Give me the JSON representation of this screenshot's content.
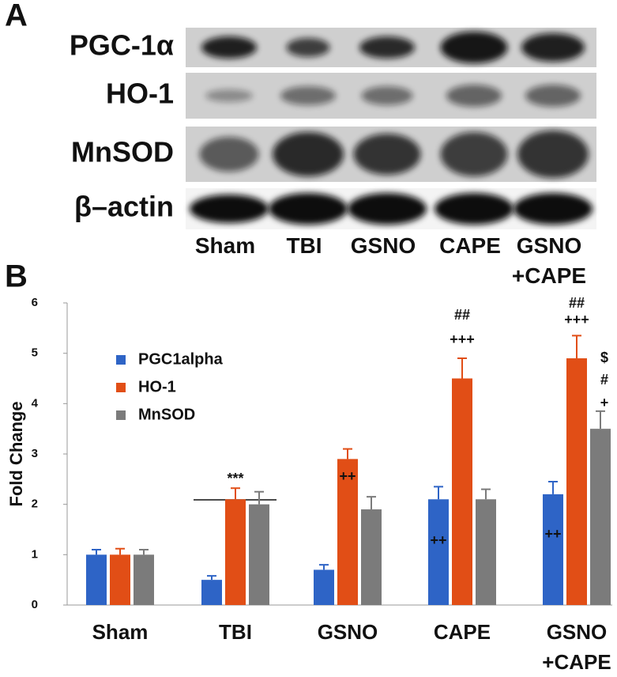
{
  "panel_a": {
    "letter": "A",
    "rows": [
      "PGC-1α",
      "HO-1",
      "MnSOD",
      "β–actin"
    ],
    "lanes": [
      "Sham",
      "TBI",
      "GSNO",
      "CAPE",
      "GSNO\n+CAPE"
    ]
  },
  "chart_data": {
    "type": "bar",
    "letter": "B",
    "ylabel": "Fold Change",
    "categories": [
      "Sham",
      "TBI",
      "GSNO",
      "CAPE",
      "GSNO\n+CAPE"
    ],
    "series": [
      {
        "name": "PGC1alpha",
        "color": "#2e64c6",
        "values": [
          1,
          0.5,
          0.7,
          2.1,
          2.2
        ],
        "errors": [
          0.1,
          0.08,
          0.1,
          0.25,
          0.25
        ]
      },
      {
        "name": "HO-1",
        "color": "#e14e16",
        "values": [
          1,
          2.1,
          2.9,
          4.5,
          4.9
        ],
        "errors": [
          0.12,
          0.22,
          0.2,
          0.4,
          0.45
        ]
      },
      {
        "name": "MnSOD",
        "color": "#7b7b7b",
        "values": [
          1,
          2.0,
          1.9,
          2.1,
          3.5
        ],
        "errors": [
          0.1,
          0.25,
          0.25,
          0.2,
          0.35
        ]
      }
    ],
    "ylim": [
      0,
      6
    ],
    "yticks": [
      0,
      1,
      2,
      3,
      4,
      5,
      6
    ],
    "annotations": [
      "***",
      "++",
      "++",
      "+++",
      "##",
      "++",
      "+++",
      "##",
      "$",
      "#",
      "+"
    ]
  }
}
